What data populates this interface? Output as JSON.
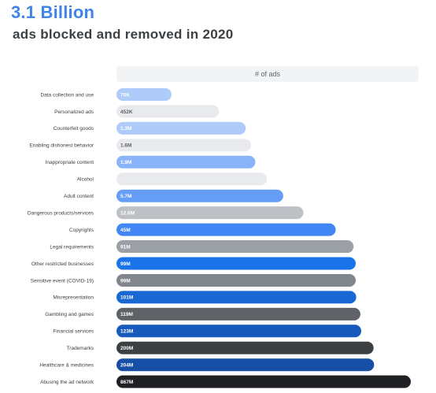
{
  "headline": "3.1 Billion",
  "subheadline": "ads blocked and removed in 2020",
  "chart_data": {
    "type": "bar",
    "orientation": "horizontal",
    "column_header": "# of ads",
    "categories": [
      "Data collection and use",
      "Personalized ads",
      "Counterfeit goods",
      "Enabling dishonest behavior",
      "Inappropriate content",
      "Alcohol",
      "Adult content",
      "Dangerous products/services",
      "Copyrights",
      "Legal requirements",
      "Other restricted businesses",
      "Sensitive event (COVID-19)",
      "Misrepresentation",
      "Gambling and games",
      "Financial services",
      "Trademarks",
      "Healthcare & medicines",
      "Abusing the ad network"
    ],
    "values": [
      70000,
      452000,
      1300000,
      1600000,
      1900000,
      3000000,
      5700000,
      12600000,
      45000000,
      91000000,
      99000000,
      99000000,
      101000000,
      119000000,
      123000000,
      200000000,
      204000000,
      867000000
    ],
    "value_labels": [
      "70K",
      "452K",
      "1.3M",
      "1.6M",
      "1.9M",
      "",
      "5.7M",
      "12.6M",
      "45M",
      "91M",
      "99M",
      "99M",
      "101M",
      "119M",
      "123M",
      "200M",
      "204M",
      "867M"
    ],
    "scale": "log",
    "colors": [
      "#aecbfa",
      "#e8eaed",
      "#aecbfa",
      "#e8eaed",
      "#8ab4f8",
      "#e8eaed",
      "#669df6",
      "#bdc1c6",
      "#4285f4",
      "#9aa0a6",
      "#1a73e8",
      "#80868b",
      "#1967d2",
      "#5f6368",
      "#185abc",
      "#3c4043",
      "#174ea6",
      "#202124"
    ],
    "label_colors": [
      "#ffffff",
      "#5f6368",
      "#ffffff",
      "#5f6368",
      "#ffffff",
      "#5f6368",
      "#ffffff",
      "#ffffff",
      "#ffffff",
      "#ffffff",
      "#ffffff",
      "#ffffff",
      "#ffffff",
      "#ffffff",
      "#ffffff",
      "#ffffff",
      "#ffffff",
      "#ffffff"
    ]
  }
}
